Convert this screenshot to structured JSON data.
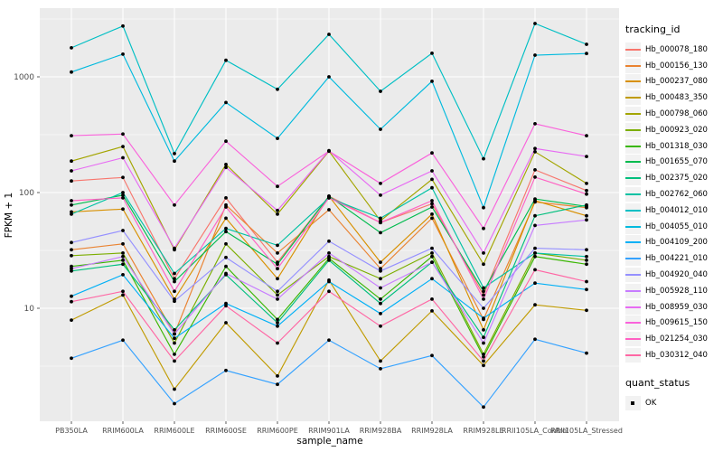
{
  "chart_data": {
    "type": "line",
    "title": "",
    "xlabel": "sample_name",
    "ylabel": "FPKM + 1",
    "y_scale": "log10",
    "ylim": [
      1,
      4000
    ],
    "y_ticks": [
      10,
      100,
      1000
    ],
    "y_minor": [
      3.162,
      31.62,
      316.2,
      3162
    ],
    "grid": "on",
    "legend_position": "right",
    "categories": [
      "PB350LA",
      "RRIM600LA",
      "RRIM600LE",
      "RRIM600SE",
      "RRIM600PE",
      "RRIM901LA",
      "RRIM928BA",
      "RRIM928LA",
      "RRIM928LE",
      "RRII105LA_Control",
      "RRII105LA_Stressed"
    ],
    "series": [
      {
        "name": "Hb_000078_180",
        "color": "#F8766D",
        "values": [
          126,
          135,
          18,
          90,
          25,
          93,
          55,
          80,
          13,
          157,
          104
        ]
      },
      {
        "name": "Hb_000156_130",
        "color": "#EA8331",
        "values": [
          32,
          36,
          6,
          78,
          30,
          71,
          22,
          60,
          8,
          83,
          74
        ]
      },
      {
        "name": "Hb_000237_080",
        "color": "#D89000",
        "values": [
          68,
          72,
          12,
          60,
          18,
          93,
          25,
          65,
          6.5,
          85,
          63
        ]
      },
      {
        "name": "Hb_000483_350",
        "color": "#C09B00",
        "values": [
          7.9,
          13,
          2,
          7.5,
          2.6,
          17.5,
          3.5,
          9.5,
          3.2,
          10.7,
          9.6
        ]
      },
      {
        "name": "Hb_000798_060",
        "color": "#A3A500",
        "values": [
          187,
          250,
          32,
          175,
          65,
          228,
          57,
          130,
          24,
          225,
          120
        ]
      },
      {
        "name": "Hb_000923_020",
        "color": "#7CAE00",
        "values": [
          28.5,
          30,
          5,
          36,
          13,
          28,
          18,
          30,
          4,
          30,
          26
        ]
      },
      {
        "name": "Hb_001318_030",
        "color": "#39B600",
        "values": [
          23,
          26,
          4,
          23,
          8,
          27,
          12,
          28,
          3.8,
          28,
          24
        ]
      },
      {
        "name": "Hb_001655_070",
        "color": "#00BB4E",
        "values": [
          78,
          95,
          17,
          46,
          24,
          93,
          45,
          75,
          14,
          88,
          76
        ]
      },
      {
        "name": "Hb_002375_020",
        "color": "#00BF7D",
        "values": [
          21,
          24,
          6.5,
          19.5,
          7.5,
          26,
          11,
          25,
          5.6,
          63,
          78
        ]
      },
      {
        "name": "Hb_002762_060",
        "color": "#00C1A3",
        "values": [
          65,
          100,
          20,
          49,
          35,
          90,
          60,
          110,
          15,
          30,
          28
        ]
      },
      {
        "name": "Hb_004012_010",
        "color": "#00BFC4",
        "values": [
          1780,
          2750,
          217,
          1390,
          780,
          2330,
          750,
          1600,
          196,
          2890,
          1910
        ]
      },
      {
        "name": "Hb_004055_010",
        "color": "#00BADE",
        "values": [
          1100,
          1570,
          187,
          600,
          294,
          1000,
          352,
          915,
          74,
          1540,
          1590
        ]
      },
      {
        "name": "Hb_004109_200",
        "color": "#00B0F6",
        "values": [
          12.7,
          19.5,
          5.5,
          11,
          7,
          17,
          9,
          18,
          8.2,
          16.5,
          14.5
        ]
      },
      {
        "name": "Hb_004221_010",
        "color": "#35A2FF",
        "values": [
          3.7,
          5.3,
          1.5,
          2.9,
          2.2,
          5.3,
          3,
          3.9,
          1.4,
          5.4,
          4.1
        ]
      },
      {
        "name": "Hb_004920_040",
        "color": "#9590FF",
        "values": [
          37,
          47,
          11.5,
          27.5,
          14,
          38,
          21,
          33,
          10,
          33,
          32
        ]
      },
      {
        "name": "Hb_005928_110",
        "color": "#C77CFF",
        "values": [
          22,
          28,
          6,
          20,
          12,
          30,
          15,
          25,
          5,
          52,
          58
        ]
      },
      {
        "name": "Hb_008959_030",
        "color": "#E76BF3",
        "values": [
          154,
          200,
          33,
          165,
          70,
          230,
          95,
          154,
          30,
          240,
          205
        ]
      },
      {
        "name": "Hb_009615_150",
        "color": "#FA62DB",
        "values": [
          310,
          320,
          78,
          278,
          113,
          228,
          120,
          220,
          49,
          393,
          310
        ]
      },
      {
        "name": "Hb_021254_030",
        "color": "#FF61C3",
        "values": [
          85,
          90,
          14,
          75,
          22,
          90,
          55,
          85,
          12,
          136,
          97
        ]
      },
      {
        "name": "Hb_030312_040",
        "color": "#FF67A4",
        "values": [
          11.4,
          14,
          3.5,
          10.5,
          5,
          14,
          7,
          12,
          3.5,
          21.5,
          17
        ]
      }
    ],
    "colors": {
      "panel_bg": "#EBEBEB",
      "grid": "#FFFFFF",
      "point": "#000000",
      "tick_text": "#4D4D4D",
      "axis_title": "#000000",
      "legend_key_bg": "#F2F2F2"
    }
  },
  "legend": {
    "tracking_title": "tracking_id",
    "quant_title": "quant_status",
    "quant_items": [
      "OK"
    ]
  }
}
